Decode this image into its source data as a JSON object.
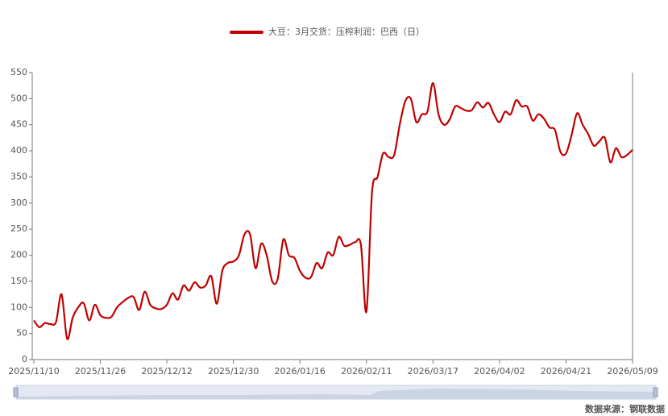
{
  "chart_data": {
    "type": "line",
    "series": [
      {
        "name": "大豆：3月交货：压榨利润：巴西（日）",
        "color": "#c00000",
        "values": [
          75,
          62,
          70,
          68,
          72,
          125,
          40,
          80,
          100,
          108,
          75,
          105,
          85,
          80,
          82,
          100,
          110,
          118,
          120,
          95,
          130,
          105,
          98,
          97,
          105,
          127,
          115,
          142,
          132,
          148,
          138,
          142,
          160,
          107,
          170,
          185,
          188,
          200,
          240,
          240,
          175,
          222,
          200,
          150,
          155,
          230,
          200,
          195,
          170,
          157,
          158,
          185,
          175,
          205,
          200,
          235,
          218,
          220,
          225,
          220,
          92,
          320,
          350,
          395,
          388,
          392,
          450,
          495,
          500,
          455,
          470,
          475,
          530,
          470,
          450,
          460,
          485,
          482,
          477,
          478,
          493,
          483,
          492,
          470,
          455,
          475,
          470,
          497,
          485,
          485,
          458,
          470,
          462,
          445,
          440,
          398,
          395,
          430,
          472,
          450,
          432,
          410,
          418,
          425,
          378,
          405,
          388,
          392,
          402
        ]
      }
    ],
    "categories": [
      "2025/11/10",
      null,
      null,
      null,
      null,
      null,
      null,
      null,
      null,
      null,
      null,
      null,
      "2025/11/26",
      null,
      null,
      null,
      null,
      null,
      null,
      null,
      null,
      null,
      null,
      null,
      "2025/12/12",
      null,
      null,
      null,
      null,
      null,
      null,
      null,
      null,
      null,
      null,
      null,
      "2025/12/30",
      null,
      null,
      null,
      null,
      null,
      null,
      null,
      null,
      null,
      null,
      null,
      "2026/01/16",
      null,
      null,
      null,
      null,
      null,
      null,
      null,
      null,
      null,
      null,
      null,
      "2026/02/11",
      null,
      null,
      null,
      null,
      null,
      null,
      null,
      null,
      null,
      null,
      null,
      "2026/03/17",
      null,
      null,
      null,
      null,
      null,
      null,
      null,
      null,
      null,
      null,
      null,
      "2026/04/02",
      null,
      null,
      null,
      null,
      null,
      null,
      null,
      null,
      null,
      null,
      null,
      "2026/04/21",
      null,
      null,
      null,
      null,
      null,
      null,
      null,
      null,
      null,
      null,
      null,
      "2026/05/09"
    ],
    "ylim": [
      0,
      550
    ],
    "yticks": [
      0,
      50,
      100,
      150,
      200,
      250,
      300,
      350,
      400,
      450,
      500,
      550
    ],
    "grid": false,
    "source": "数据来源：钢联数据"
  }
}
